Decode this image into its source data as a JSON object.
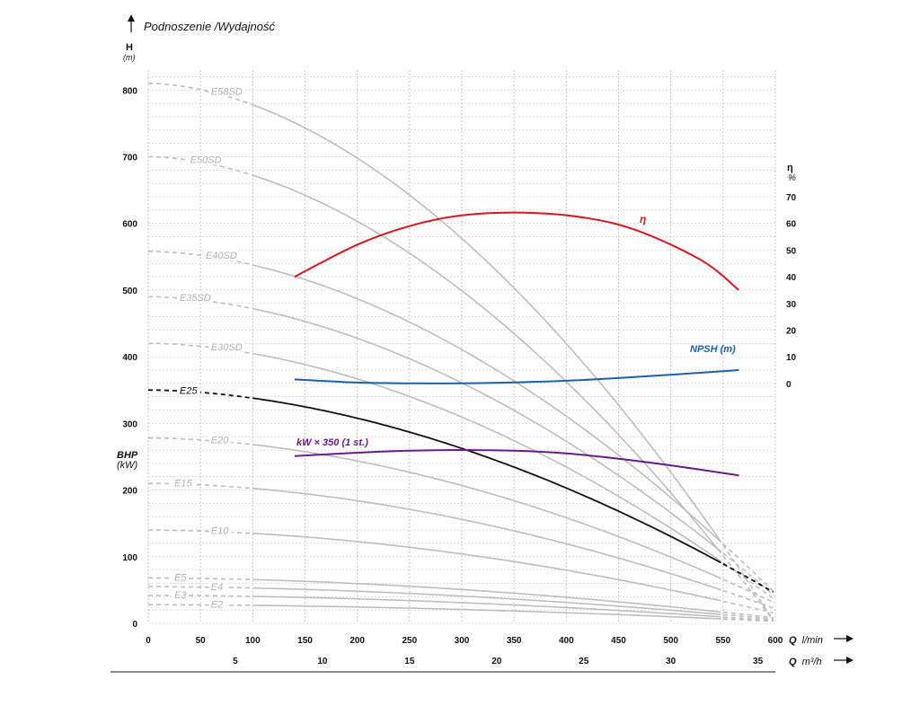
{
  "chart_data": {
    "type": "line",
    "title": "Podnoszenie /Wydajność",
    "left_axis": {
      "label": "H",
      "unit": "(m)",
      "ticks": [
        0,
        100,
        200,
        300,
        400,
        500,
        600,
        700,
        800
      ],
      "ylim": [
        0,
        830
      ],
      "secondary_label": "BHP",
      "secondary_unit": "(kW)"
    },
    "right_axis": {
      "label": "η",
      "unit": "%",
      "ticks": [
        0,
        10,
        20,
        30,
        40,
        50,
        60,
        70
      ]
    },
    "x_axis": {
      "label_bold": "Q",
      "label_unit": "l/min",
      "ticks": [
        0,
        50,
        100,
        150,
        200,
        250,
        300,
        350,
        400,
        450,
        500,
        550,
        600
      ],
      "xlim": [
        0,
        600
      ]
    },
    "x2_axis": {
      "label_bold": "Q",
      "label_unit": "m³/h",
      "ticks": [
        5,
        10,
        15,
        20,
        25,
        30,
        35
      ]
    },
    "grid": true,
    "head_curves": [
      {
        "name": "E58SD",
        "H0": 810,
        "Hmax": 0,
        "label_x": 60
      },
      {
        "name": "E50SD",
        "H0": 700,
        "Hmax": 0,
        "label_x": 40
      },
      {
        "name": "E40SD",
        "H0": 558,
        "Hmax": 45,
        "label_x": 55
      },
      {
        "name": "E35SD",
        "H0": 490,
        "Hmax": 40,
        "label_x": 30
      },
      {
        "name": "E30SD",
        "H0": 420,
        "Hmax": 35,
        "label_x": 60
      },
      {
        "name": "E25",
        "H0": 350,
        "Hmax": 45,
        "label_x": 30
      },
      {
        "name": "E20",
        "H0": 278,
        "Hmax": 30,
        "label_x": 60
      },
      {
        "name": "E15",
        "H0": 210,
        "Hmax": 22,
        "label_x": 25
      },
      {
        "name": "E10",
        "H0": 140,
        "Hmax": 15,
        "label_x": 60
      },
      {
        "name": "E5",
        "H0": 68,
        "Hmax": 8,
        "label_x": 25
      },
      {
        "name": "E4",
        "H0": 55,
        "Hmax": 6,
        "label_x": 60
      },
      {
        "name": "E3",
        "H0": 42,
        "Hmax": 4,
        "label_x": 25
      },
      {
        "name": "E2",
        "H0": 28,
        "Hmax": 3,
        "label_x": 60
      }
    ],
    "efficiency": {
      "name": "η",
      "x": [
        140,
        200,
        250,
        300,
        360,
        420,
        470,
        530,
        565
      ],
      "y": [
        40,
        52,
        59,
        63,
        64,
        62,
        57,
        46,
        35
      ]
    },
    "npsh": {
      "name": "NPSH (m)",
      "x": [
        140,
        200,
        260,
        330,
        400,
        470,
        530,
        565
      ],
      "y": [
        1.5,
        0.3,
        0,
        0.2,
        1,
        2.5,
        4,
        5
      ]
    },
    "power": {
      "name": "kW × 350 (1 st.)",
      "x": [
        140,
        200,
        250,
        300,
        350,
        400,
        450,
        500,
        565
      ],
      "y": [
        251,
        256,
        259,
        260,
        259,
        255,
        247,
        237,
        222
      ]
    }
  }
}
